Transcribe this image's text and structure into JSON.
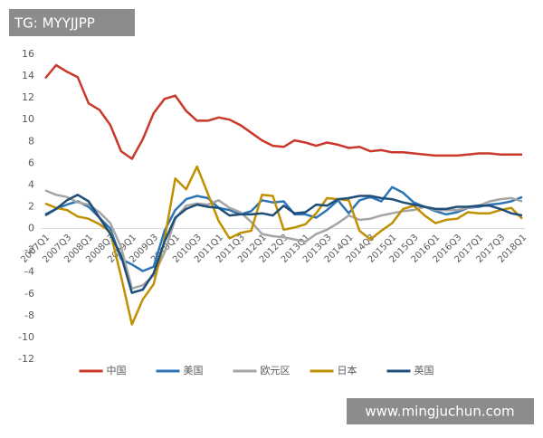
{
  "chart_data": {
    "type": "line",
    "categories": [
      "2007Q1",
      null,
      "2007Q3",
      null,
      "2008Q1",
      null,
      "2008Q3",
      null,
      "2009Q1",
      null,
      "2009Q3",
      null,
      "2010Q1",
      null,
      "2010Q3",
      null,
      "2011Q1",
      null,
      "2011Q3",
      null,
      "2012Q1",
      null,
      "2012Q3",
      null,
      "2013Q1",
      null,
      "2013Q3",
      null,
      "2014Q1",
      null,
      "2014Q3",
      null,
      "2015Q1",
      null,
      "2015Q3",
      null,
      "2016Q1",
      null,
      "2016Q3",
      null,
      "2017Q1",
      null,
      "2017Q3",
      null,
      "2018Q1"
    ],
    "series": [
      {
        "name": "中国",
        "color": "#c9382a",
        "values": [
          13.8,
          15.0,
          14.4,
          13.9,
          11.5,
          10.9,
          9.5,
          7.1,
          6.4,
          8.2,
          10.6,
          11.9,
          12.2,
          10.8,
          9.9,
          9.9,
          10.2,
          10.0,
          9.5,
          8.8,
          8.1,
          7.6,
          7.5,
          8.1,
          7.9,
          7.6,
          7.9,
          7.7,
          7.4,
          7.5,
          7.1,
          7.2,
          7.0,
          7.0,
          6.9,
          6.8,
          6.7,
          6.7,
          6.7,
          6.8,
          6.9,
          6.9,
          6.8,
          6.8,
          6.8
        ]
      },
      {
        "name": "美国",
        "color": "#2e75b6",
        "values": [
          1.3,
          1.8,
          2.2,
          2.5,
          2.0,
          1.0,
          0.0,
          -2.8,
          -3.3,
          -3.9,
          -3.5,
          -0.2,
          1.7,
          2.7,
          3.0,
          2.8,
          1.9,
          1.7,
          1.3,
          1.6,
          2.6,
          2.4,
          2.5,
          1.3,
          1.3,
          1.0,
          1.7,
          2.6,
          1.4,
          2.6,
          2.9,
          2.5,
          3.8,
          3.3,
          2.4,
          2.0,
          1.6,
          1.3,
          1.5,
          1.9,
          2.0,
          2.2,
          2.3,
          2.5,
          2.9
        ]
      },
      {
        "name": "欧元区",
        "color": "#a5a5a5",
        "values": [
          3.5,
          3.1,
          2.9,
          2.4,
          2.2,
          1.5,
          0.5,
          -1.7,
          -5.5,
          -5.2,
          -4.3,
          -2.2,
          0.9,
          2.1,
          2.3,
          2.2,
          2.6,
          1.9,
          1.5,
          0.6,
          -0.5,
          -0.7,
          -0.8,
          -1.0,
          -1.2,
          -0.5,
          -0.1,
          0.5,
          1.2,
          0.8,
          0.9,
          1.2,
          1.4,
          1.6,
          1.7,
          2.0,
          1.7,
          1.7,
          1.7,
          1.9,
          2.1,
          2.5,
          2.7,
          2.8,
          2.5
        ]
      },
      {
        "name": "日本",
        "color": "#bf9000",
        "values": [
          2.3,
          1.9,
          1.7,
          1.1,
          0.9,
          0.4,
          -0.3,
          -4.4,
          -8.8,
          -6.5,
          -5.1,
          -1.0,
          4.6,
          3.6,
          5.7,
          3.2,
          0.7,
          -0.9,
          -0.4,
          -0.2,
          3.1,
          3.0,
          -0.1,
          0.1,
          0.4,
          1.4,
          2.8,
          2.7,
          2.6,
          -0.2,
          -1.0,
          -0.2,
          0.5,
          1.8,
          2.1,
          1.2,
          0.5,
          0.8,
          0.9,
          1.5,
          1.4,
          1.4,
          1.7,
          1.9,
          0.9
        ]
      },
      {
        "name": "英国",
        "color": "#1f4e79",
        "values": [
          1.2,
          1.8,
          2.6,
          3.1,
          2.5,
          1.0,
          -0.5,
          -2.5,
          -5.9,
          -5.6,
          -4.1,
          -1.2,
          1.0,
          1.8,
          2.2,
          2.0,
          1.9,
          1.2,
          1.3,
          1.3,
          1.4,
          1.2,
          2.1,
          1.4,
          1.5,
          2.2,
          2.1,
          2.7,
          2.8,
          3.0,
          3.0,
          2.8,
          2.7,
          2.4,
          2.2,
          2.0,
          1.8,
          1.8,
          2.0,
          2.0,
          2.1,
          2.1,
          1.8,
          1.4,
          1.2
        ]
      }
    ],
    "ylim": [
      -12,
      16
    ],
    "yticks": [
      -12,
      -10,
      -8,
      -6,
      -4,
      -2,
      0,
      2,
      4,
      6,
      8,
      10,
      12,
      14,
      16
    ],
    "grid": false
  },
  "watermarks": {
    "top_left": "TG: MYYJJPP",
    "bottom_right": "www.mingjuchun.com"
  }
}
